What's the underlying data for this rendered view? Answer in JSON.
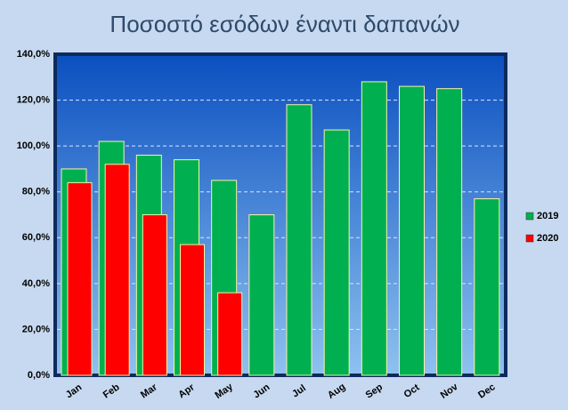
{
  "chart_data": {
    "type": "bar",
    "title": "Ποσοστό εσόδων έναντι δαπανών",
    "categories": [
      "Jan",
      "Feb",
      "Mar",
      "Apr",
      "May",
      "Jun",
      "Jul",
      "Aug",
      "Sep",
      "Oct",
      "Nov",
      "Dec"
    ],
    "series": [
      {
        "name": "2019",
        "color": "#00b050",
        "values": [
          90,
          102,
          96,
          94,
          85,
          70,
          118,
          107,
          128,
          126,
          125,
          77
        ]
      },
      {
        "name": "2020",
        "color": "#ff0000",
        "values": [
          84,
          92,
          70,
          57,
          36,
          null,
          null,
          null,
          null,
          null,
          null,
          null
        ]
      }
    ],
    "ylim": [
      0,
      140
    ],
    "yticks": [
      {
        "value": 0,
        "label": "0,0%"
      },
      {
        "value": 20,
        "label": "20,0%"
      },
      {
        "value": 40,
        "label": "40,0%"
      },
      {
        "value": 60,
        "label": "60,0%"
      },
      {
        "value": 80,
        "label": "80,0%"
      },
      {
        "value": 100,
        "label": "100,0%"
      },
      {
        "value": 120,
        "label": "120,0%"
      },
      {
        "value": 140,
        "label": "140,0%"
      }
    ],
    "grid": true,
    "legend": "right"
  }
}
